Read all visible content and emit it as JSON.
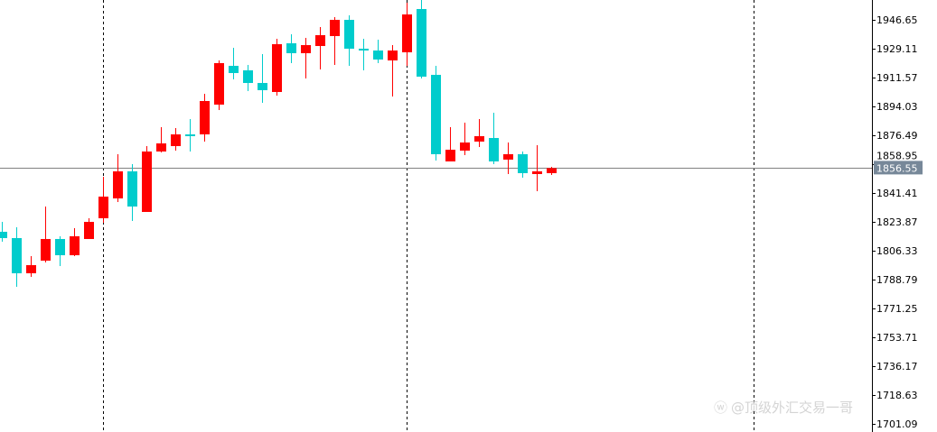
{
  "chart_data": {
    "type": "candlestick",
    "title": "",
    "xlabel": "",
    "ylabel": "",
    "ylim": [
      1696.16,
      1958.71
    ],
    "grid": false,
    "colors": {
      "bull": "#ff0000",
      "bear": "#00cccc",
      "axis": "#000000",
      "price_line": "#808080",
      "price_label_bg": "#778899",
      "separator": "#000000"
    },
    "y_ticks": [
      "1946.65",
      "1929.11",
      "1911.57",
      "1894.03",
      "1876.49",
      "1858.95",
      "1841.41",
      "1823.87",
      "1806.33",
      "1788.79",
      "1771.25",
      "1753.71",
      "1736.17",
      "1718.63",
      "1701.09"
    ],
    "current_price": "1856.55",
    "candles": [
      {
        "o": 1817.84,
        "h": 1823.87,
        "l": 1811.81,
        "c": 1814.0
      },
      {
        "o": 1814.0,
        "h": 1820.58,
        "l": 1784.4,
        "c": 1792.62
      },
      {
        "o": 1792.62,
        "h": 1803.04,
        "l": 1790.43,
        "c": 1797.56
      },
      {
        "o": 1800.3,
        "h": 1833.19,
        "l": 1799.2,
        "c": 1813.45
      },
      {
        "o": 1813.45,
        "h": 1815.1,
        "l": 1797.01,
        "c": 1803.59
      },
      {
        "o": 1803.59,
        "h": 1820.03,
        "l": 1803.04,
        "c": 1815.1
      },
      {
        "o": 1813.45,
        "h": 1826.06,
        "l": 1813.45,
        "c": 1823.87
      },
      {
        "o": 1826.06,
        "h": 1851.28,
        "l": 1823.32,
        "c": 1839.22
      },
      {
        "o": 1838.12,
        "h": 1864.98,
        "l": 1835.93,
        "c": 1854.57
      },
      {
        "o": 1854.57,
        "h": 1858.95,
        "l": 1824.42,
        "c": 1833.19
      },
      {
        "o": 1829.9,
        "h": 1869.92,
        "l": 1829.9,
        "c": 1866.63
      },
      {
        "o": 1866.63,
        "h": 1881.43,
        "l": 1866.08,
        "c": 1871.56
      },
      {
        "o": 1869.92,
        "h": 1880.88,
        "l": 1867.17,
        "c": 1877.04
      },
      {
        "o": 1877.04,
        "h": 1886.36,
        "l": 1866.63,
        "c": 1875.94
      },
      {
        "o": 1877.04,
        "h": 1901.71,
        "l": 1872.66,
        "c": 1897.32
      },
      {
        "o": 1895.12,
        "h": 1921.98,
        "l": 1891.84,
        "c": 1920.34
      },
      {
        "o": 1918.7,
        "h": 1929.66,
        "l": 1910.48,
        "c": 1914.31
      },
      {
        "o": 1915.96,
        "h": 1919.24,
        "l": 1903.35,
        "c": 1908.28
      },
      {
        "o": 1908.28,
        "h": 1925.82,
        "l": 1896.22,
        "c": 1903.9
      },
      {
        "o": 1902.8,
        "h": 1935.14,
        "l": 1900.61,
        "c": 1931.85
      },
      {
        "o": 1932.4,
        "h": 1937.88,
        "l": 1920.34,
        "c": 1926.37
      },
      {
        "o": 1926.37,
        "h": 1935.69,
        "l": 1911.02,
        "c": 1931.3
      },
      {
        "o": 1930.75,
        "h": 1942.27,
        "l": 1916.5,
        "c": 1937.33
      },
      {
        "o": 1936.78,
        "h": 1948.3,
        "l": 1919.24,
        "c": 1946.65
      },
      {
        "o": 1946.65,
        "h": 1949.39,
        "l": 1918.7,
        "c": 1929.11
      },
      {
        "o": 1929.11,
        "h": 1935.14,
        "l": 1915.96,
        "c": 1928.56
      },
      {
        "o": 1928.02,
        "h": 1934.59,
        "l": 1920.34,
        "c": 1922.53
      },
      {
        "o": 1921.98,
        "h": 1931.3,
        "l": 1900.06,
        "c": 1928.02
      },
      {
        "o": 1926.92,
        "h": 1957.07,
        "l": 1918.7,
        "c": 1949.94
      },
      {
        "o": 1953.23,
        "h": 1958.7,
        "l": 1911.02,
        "c": 1912.12
      },
      {
        "o": 1913.22,
        "h": 1918.7,
        "l": 1861.15,
        "c": 1864.98
      },
      {
        "o": 1860.6,
        "h": 1881.43,
        "l": 1860.6,
        "c": 1867.72
      },
      {
        "o": 1867.17,
        "h": 1884.17,
        "l": 1864.44,
        "c": 1872.11
      },
      {
        "o": 1872.66,
        "h": 1886.36,
        "l": 1869.37,
        "c": 1875.94
      },
      {
        "o": 1874.85,
        "h": 1890.19,
        "l": 1858.95,
        "c": 1860.6
      },
      {
        "o": 1861.7,
        "h": 1872.11,
        "l": 1852.92,
        "c": 1864.98
      },
      {
        "o": 1864.98,
        "h": 1866.63,
        "l": 1850.73,
        "c": 1853.47
      },
      {
        "o": 1852.92,
        "h": 1870.46,
        "l": 1842.51,
        "c": 1854.57
      },
      {
        "o": 1853.47,
        "h": 1857.31,
        "l": 1852.37,
        "c": 1856.55
      }
    ],
    "period_separators_after_candle": [
      7,
      28,
      52
    ]
  },
  "watermark": {
    "text": "@顶级外汇交易一哥",
    "icon": "weibo-icon"
  }
}
